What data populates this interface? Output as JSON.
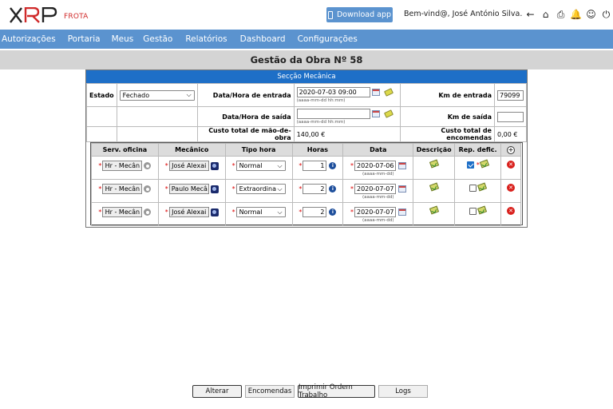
{
  "header": {
    "logo_text": "XRP",
    "logo_sub": "FROTA",
    "download_label": "Download app",
    "welcome": "Bem-vind@, José António Silva."
  },
  "nav": {
    "items": [
      "Autorizações",
      "Portaria",
      "Meus",
      "Gestão",
      "Relatórios",
      "Dashboard",
      "Configurações"
    ]
  },
  "page": {
    "title": "Gestão da Obra Nº 58",
    "section": "Secção Mecânica"
  },
  "form": {
    "estado_label": "Estado",
    "estado_value": "Fechado",
    "entrada_label": "Data/Hora de entrada",
    "entrada_value": "2020-07-03 09:00",
    "entrada_hint": "(aaaa-mm-dd hh:mm)",
    "km_entrada_label": "Km de entrada",
    "km_entrada_value": "79099",
    "saida_label": "Data/Hora de saída",
    "saida_value": "",
    "saida_hint": "(aaaa-mm-dd hh:mm)",
    "km_saida_label": "Km de saída",
    "km_saida_value": "",
    "custo_mao_label": "Custo total de mão-de-obra",
    "custo_mao_value": "140,00 €",
    "custo_enc_label": "Custo total de encomendas",
    "custo_enc_value": "0,00 €"
  },
  "services": {
    "headers": [
      "Serv. oficina",
      "Mecânico",
      "Tipo hora",
      "Horas",
      "Data",
      "Descrição",
      "Rep. defic."
    ],
    "date_hint": "(aaaa-mm-dd)",
    "rows": [
      {
        "serv": "Hr - Mecân",
        "mecanico": "José Alexai",
        "tipo": "Normal",
        "horas": "1",
        "data": "2020-07-06",
        "rep_checked": true
      },
      {
        "serv": "Hr - Mecân",
        "mecanico": "Paulo Mecâ",
        "tipo": "Extraordina",
        "horas": "2",
        "data": "2020-07-07",
        "rep_checked": false
      },
      {
        "serv": "Hr - Mecân",
        "mecanico": "José Alexai",
        "tipo": "Normal",
        "horas": "2",
        "data": "2020-07-07",
        "rep_checked": false
      }
    ]
  },
  "buttons": {
    "alterar": "Alterar",
    "encomendas": "Encomendas",
    "imprimir": "Imprimir Ordem Trabalho",
    "logs": "Logs"
  },
  "colors": {
    "nav_blue": "#5b93cf",
    "section_blue": "#1e6fc7",
    "logo_red": "#d02a2a"
  }
}
